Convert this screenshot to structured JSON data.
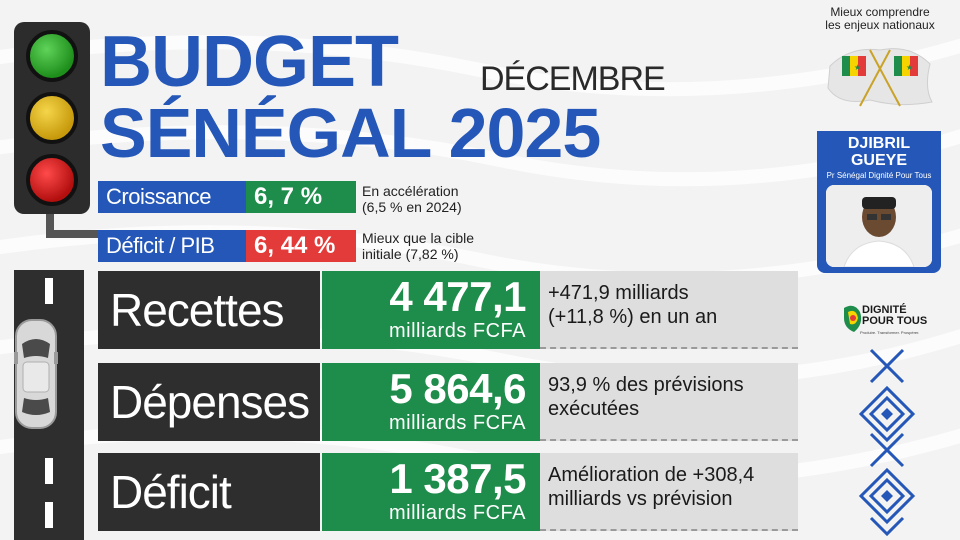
{
  "header": {
    "title_line1": "BUDGET",
    "title_line2": "SÉNÉGAL 2025",
    "month": "DÉCEMBRE"
  },
  "indicators": [
    {
      "label": "Croissance",
      "value": "6, 7 %",
      "note": "En accélération\n(6,5 % en 2024)",
      "color": "#1e8c4a"
    },
    {
      "label": "Déficit / PIB",
      "value": "6, 44 %",
      "note": "Mieux que la cible\ninitiale (7,82 %)",
      "color": "#e33a3a"
    }
  ],
  "metrics": [
    {
      "label": "Recettes",
      "value": "4 477,1",
      "unit": "milliards FCFA",
      "note": "+471,9 milliards\n(+11,8 %) en un an"
    },
    {
      "label": "Dépenses",
      "value": "5 864,6",
      "unit": "milliards FCFA",
      "note": "93,9 % des prévisions\nexécutées"
    },
    {
      "label": "Déficit",
      "value": "1 387,5",
      "unit": "milliards FCFA",
      "note": "Amélioration de +308,4\nmilliards vs prévision"
    }
  ],
  "sidebar": {
    "tagline": "Mieux comprendre\nles enjeux nationaux",
    "candidate_name": "DJIBRIL\nGUEYE",
    "candidate_role": "Pr Sénégal Dignité Pour Tous",
    "logo_text": "DIGNITÉ\nPOUR TOUS",
    "logo_sub": "Produire. Transformer. Prospérer."
  },
  "icons": [
    "traffic-light-icon",
    "car-icon",
    "senegal-map-icon",
    "crossed-flags-icon",
    "avatar-photo",
    "dignite-logo-icon",
    "diamond-pattern-icon"
  ],
  "colors": {
    "brand_blue": "#2457b8",
    "green": "#1e8c4a",
    "red": "#e33a3a",
    "dark": "#2e2e2e"
  }
}
